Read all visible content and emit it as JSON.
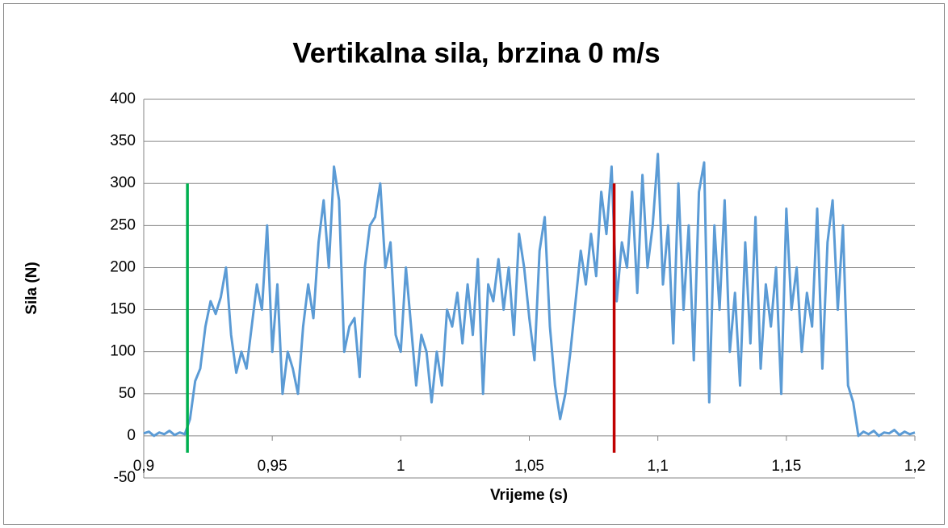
{
  "chart_data": {
    "type": "line",
    "title": "Vertikalna sila, brzina 0 m/s",
    "x_label": "Vrijeme (s)",
    "y_label": "Sila (N)",
    "xlim": [
      0.9,
      1.2
    ],
    "ylim": [
      -50,
      400
    ],
    "xticks": [
      {
        "value": 0.9,
        "label": "0,9"
      },
      {
        "value": 0.95,
        "label": "0,95"
      },
      1,
      {
        "value": 1.05,
        "label": "1,05"
      },
      {
        "value": 1.1,
        "label": "1,1"
      },
      {
        "value": 1.15,
        "label": "1,15"
      },
      {
        "value": 1.2,
        "label": "1,2"
      }
    ],
    "yticks": [
      -50,
      0,
      50,
      100,
      150,
      200,
      250,
      300,
      350,
      400
    ],
    "grid": true,
    "x": [
      0.9,
      0.902,
      0.904,
      0.906,
      0.908,
      0.91,
      0.912,
      0.914,
      0.916,
      0.918,
      0.92,
      0.922,
      0.924,
      0.926,
      0.928,
      0.93,
      0.932,
      0.934,
      0.936,
      0.938,
      0.94,
      0.942,
      0.944,
      0.946,
      0.948,
      0.95,
      0.952,
      0.954,
      0.956,
      0.958,
      0.96,
      0.962,
      0.964,
      0.966,
      0.968,
      0.97,
      0.972,
      0.974,
      0.976,
      0.978,
      0.98,
      0.982,
      0.984,
      0.986,
      0.988,
      0.99,
      0.992,
      0.994,
      0.996,
      0.998,
      1.0,
      1.002,
      1.004,
      1.006,
      1.008,
      1.01,
      1.012,
      1.014,
      1.016,
      1.018,
      1.02,
      1.022,
      1.024,
      1.026,
      1.028,
      1.03,
      1.032,
      1.034,
      1.036,
      1.038,
      1.04,
      1.042,
      1.044,
      1.046,
      1.048,
      1.05,
      1.052,
      1.054,
      1.056,
      1.058,
      1.06,
      1.062,
      1.064,
      1.066,
      1.068,
      1.07,
      1.072,
      1.074,
      1.076,
      1.078,
      1.08,
      1.082,
      1.084,
      1.086,
      1.088,
      1.09,
      1.092,
      1.094,
      1.096,
      1.098,
      1.1,
      1.102,
      1.104,
      1.106,
      1.108,
      1.11,
      1.112,
      1.114,
      1.116,
      1.118,
      1.12,
      1.122,
      1.124,
      1.126,
      1.128,
      1.13,
      1.132,
      1.134,
      1.136,
      1.138,
      1.14,
      1.142,
      1.144,
      1.146,
      1.148,
      1.15,
      1.152,
      1.154,
      1.156,
      1.158,
      1.16,
      1.162,
      1.164,
      1.166,
      1.168,
      1.17,
      1.172,
      1.174,
      1.176,
      1.178,
      1.18,
      1.182,
      1.184,
      1.186,
      1.188,
      1.19,
      1.192,
      1.194,
      1.196,
      1.198,
      1.2
    ],
    "series": [
      {
        "color": "#5b9bd5",
        "values": [
          3,
          5,
          0,
          4,
          2,
          6,
          1,
          4,
          2,
          20,
          65,
          80,
          130,
          160,
          145,
          165,
          200,
          120,
          75,
          100,
          80,
          130,
          180,
          150,
          250,
          100,
          180,
          50,
          100,
          80,
          50,
          130,
          180,
          140,
          230,
          280,
          200,
          320,
          280,
          100,
          130,
          140,
          70,
          200,
          250,
          260,
          300,
          200,
          230,
          120,
          100,
          200,
          130,
          60,
          120,
          100,
          40,
          100,
          60,
          150,
          130,
          170,
          110,
          180,
          120,
          210,
          50,
          180,
          160,
          210,
          150,
          200,
          120,
          240,
          200,
          140,
          90,
          220,
          260,
          130,
          60,
          20,
          50,
          100,
          160,
          220,
          180,
          240,
          190,
          290,
          240,
          320,
          160,
          230,
          200,
          290,
          170,
          310,
          200,
          250,
          335,
          180,
          250,
          110,
          300,
          150,
          250,
          90,
          290,
          325,
          40,
          250,
          150,
          280,
          100,
          170,
          60,
          230,
          110,
          260,
          80,
          180,
          130,
          200,
          50,
          270,
          150,
          200,
          100,
          170,
          130,
          270,
          80,
          230,
          280,
          150,
          250,
          60,
          40,
          0,
          5,
          2,
          6,
          0,
          4,
          3,
          7,
          1,
          5,
          2,
          4
        ]
      }
    ],
    "vlines": [
      {
        "x": 0.917,
        "y": [
          -20,
          300
        ],
        "color": "#00b050"
      },
      {
        "x": 1.083,
        "y": [
          -20,
          300
        ],
        "color": "#c00000"
      }
    ]
  }
}
